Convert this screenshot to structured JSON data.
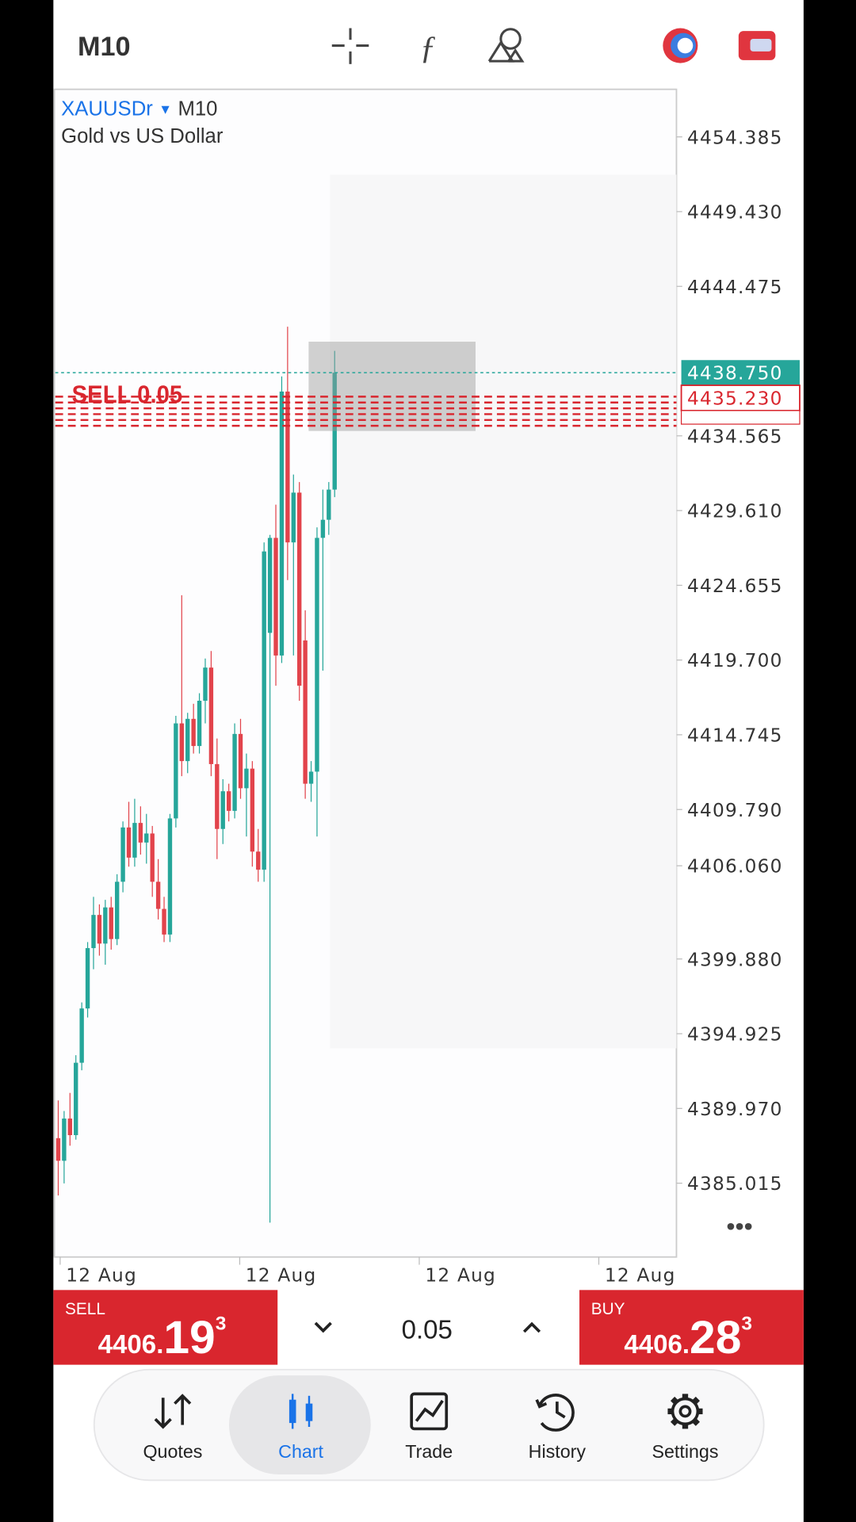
{
  "top_bar": {
    "timeframe": "M10"
  },
  "chart_data": {
    "type": "candlestick",
    "symbol": "XAUUSDr",
    "timeframe": "M10",
    "description": "Gold vs US Dollar",
    "up_color": "#26a69a",
    "down_color": "#e2434b",
    "ylim": [
      4380.12,
      4457.54
    ],
    "yticks": [
      {
        "value": 4454.385,
        "label": "4454.385"
      },
      {
        "value": 4449.43,
        "label": "4449.430"
      },
      {
        "value": 4444.475,
        "label": "4444.475"
      },
      {
        "value": 4434.565,
        "label": "4434.565"
      },
      {
        "value": 4429.61,
        "label": "4429.610"
      },
      {
        "value": 4424.655,
        "label": "4424.655"
      },
      {
        "value": 4419.7,
        "label": "4419.700"
      },
      {
        "value": 4414.745,
        "label": "4414.745"
      },
      {
        "value": 4409.79,
        "label": "4409.790"
      },
      {
        "value": 4406.06,
        "label": "4406.060"
      },
      {
        "value": 4399.88,
        "label": "4399.880"
      },
      {
        "value": 4394.925,
        "label": "4394.925"
      },
      {
        "value": 4389.97,
        "label": "4389.970"
      },
      {
        "value": 4385.015,
        "label": "4385.015"
      }
    ],
    "x_labels": [
      "12 Aug",
      "12 Aug",
      "12 Aug",
      "12 Aug"
    ],
    "open": [
      4388.0,
      4386.5,
      4389.3,
      4388.2,
      4393.0,
      4396.6,
      4400.6,
      4402.8,
      4400.9,
      4403.3,
      4401.2,
      4405.0,
      4408.6,
      4406.6,
      4408.9,
      4407.6,
      4408.2,
      4405.0,
      4403.2,
      4401.5,
      4409.2,
      4415.5,
      4413.0,
      4415.8,
      4414.0,
      4417.0,
      4419.2,
      4412.8,
      4408.5,
      4411.0,
      4409.7,
      4414.8,
      4411.2,
      4412.5,
      4407.0,
      4405.8,
      4421.5,
      4427.8,
      4420.0,
      4437.5,
      4427.5,
      4430.8,
      4421.0,
      4411.5,
      4412.3,
      4427.8,
      4429.0,
      4431.0
    ],
    "high": [
      4390.5,
      4389.8,
      4391.0,
      4393.5,
      4397.0,
      4401.0,
      4404.0,
      4403.5,
      4403.8,
      4404.0,
      4405.5,
      4409.0,
      4410.3,
      4410.5,
      4410.0,
      4409.5,
      4408.7,
      4406.5,
      4404.0,
      4409.5,
      4416.0,
      4424.0,
      4416.2,
      4416.8,
      4417.5,
      4419.8,
      4420.3,
      4414.5,
      4411.8,
      4411.5,
      4415.5,
      4415.8,
      4413.5,
      4413.0,
      4408.5,
      4427.5,
      4428.0,
      4430.0,
      4438.5,
      4441.8,
      4432.0,
      4431.5,
      4423.0,
      4413.0,
      4428.5,
      4431.0,
      4431.5,
      4440.2
    ],
    "low": [
      4384.2,
      4385.0,
      4387.5,
      4387.9,
      4392.5,
      4396.0,
      4399.2,
      4400.1,
      4399.5,
      4400.5,
      4400.8,
      4404.3,
      4406.0,
      4406.0,
      4406.8,
      4406.2,
      4404.0,
      4402.5,
      4401.0,
      4401.0,
      4408.6,
      4412.0,
      4412.2,
      4413.5,
      4413.5,
      4415.5,
      4412.0,
      4406.5,
      4407.5,
      4409.0,
      4409.2,
      4410.5,
      4408.0,
      4406.0,
      4405.0,
      4405.0,
      4382.4,
      4418.0,
      4419.5,
      4425.0,
      4420.0,
      4417.0,
      4410.5,
      4410.3,
      4408.0,
      4419.0,
      4428.0,
      4430.5
    ],
    "close": [
      4386.5,
      4389.3,
      4388.2,
      4393.0,
      4396.6,
      4400.6,
      4402.8,
      4400.9,
      4403.3,
      4401.2,
      4405.0,
      4408.6,
      4406.6,
      4408.9,
      4407.6,
      4408.2,
      4405.0,
      4403.2,
      4401.5,
      4409.2,
      4415.5,
      4413.0,
      4415.8,
      4414.0,
      4417.0,
      4419.2,
      4412.8,
      4408.5,
      4411.0,
      4409.7,
      4414.8,
      4411.2,
      4412.5,
      4407.0,
      4405.8,
      4426.9,
      4427.8,
      4420.0,
      4437.5,
      4427.5,
      4430.8,
      4418.0,
      4411.5,
      4412.3,
      4427.8,
      4429.0,
      4431.0,
      4438.75
    ],
    "last_price": {
      "value": 4438.75,
      "label": "4438.750"
    },
    "position_price": {
      "value": 4435.23,
      "label": "4435.230"
    },
    "position_label": "SELL 0.05"
  },
  "order_bar": {
    "sell": {
      "label": "SELL",
      "price_small": "4406.",
      "price_big": "19",
      "price_sup": "3"
    },
    "buy": {
      "label": "BUY",
      "price_small": "4406.",
      "price_big": "28",
      "price_sup": "3"
    },
    "lot": "0.05"
  },
  "nav": {
    "items": [
      "Quotes",
      "Chart",
      "Trade",
      "History",
      "Settings"
    ],
    "active": 1
  }
}
